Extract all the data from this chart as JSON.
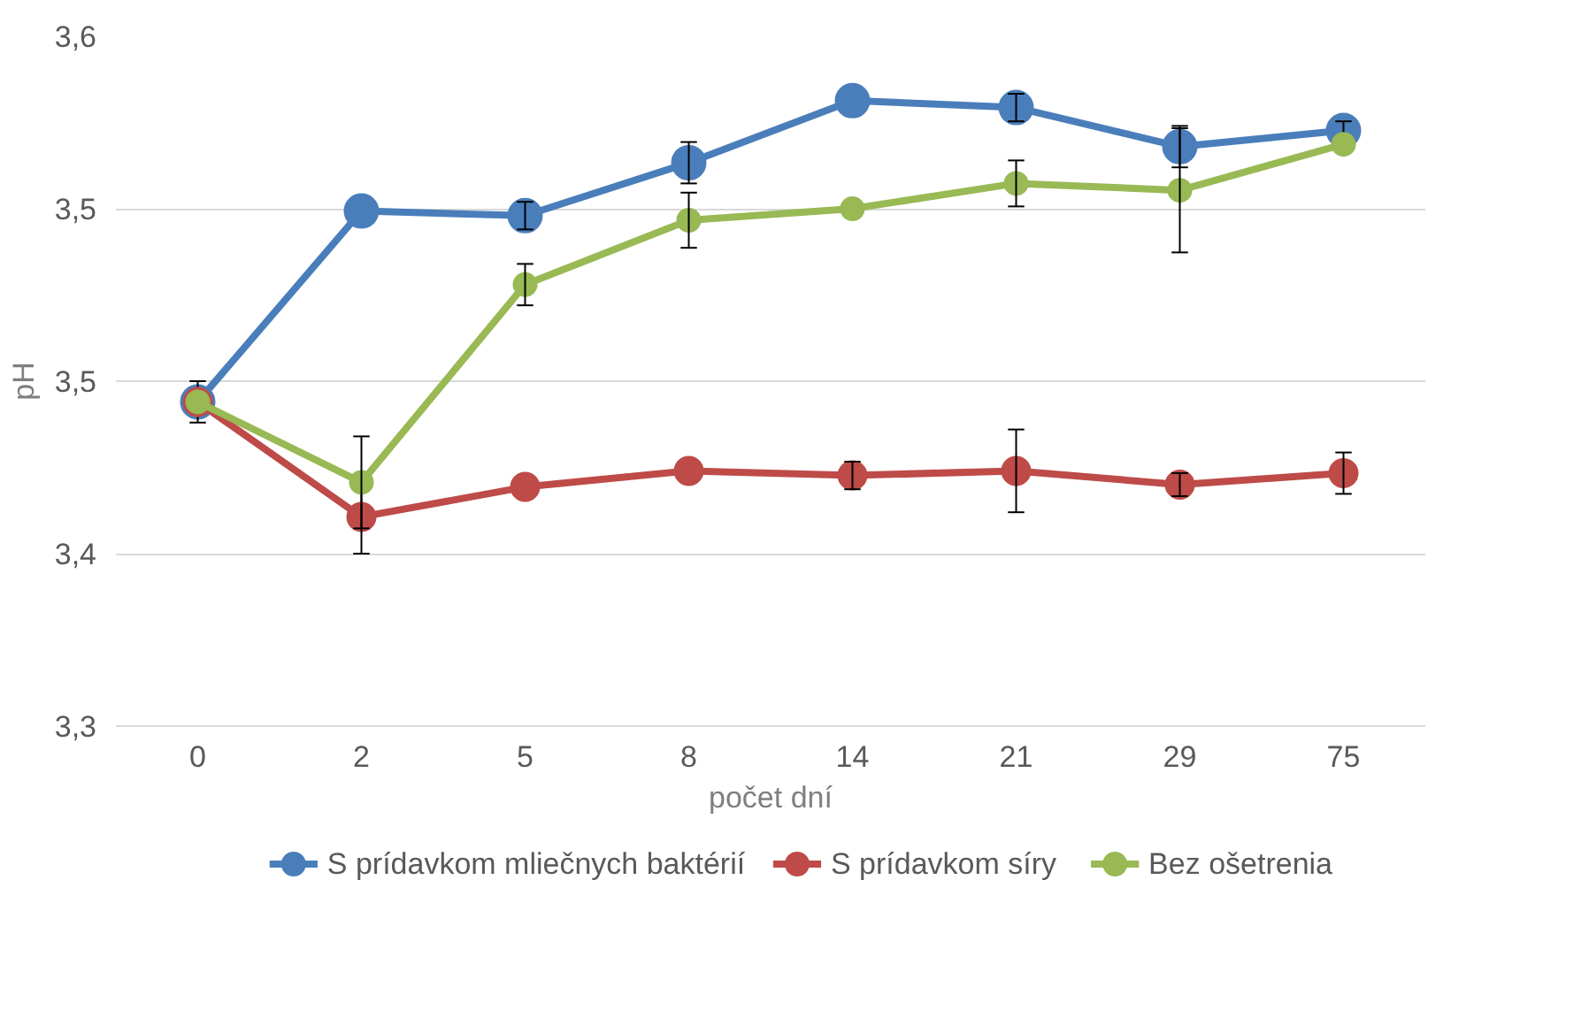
{
  "chart_data": {
    "type": "line",
    "xlabel": "počet dní",
    "ylabel": "pH",
    "categories": [
      "0",
      "2",
      "5",
      "8",
      "14",
      "21",
      "29",
      "75"
    ],
    "ylim": [
      3.3,
      3.6
    ],
    "yticks": [
      {
        "value": 3.3,
        "label": "3,3"
      },
      {
        "value": 3.375,
        "label": "3,4"
      },
      {
        "value": 3.45,
        "label": "3,5"
      },
      {
        "value": 3.525,
        "label": "3,5"
      },
      {
        "value": 3.6,
        "label": "3,6"
      }
    ],
    "grid": "y",
    "legend": "bottom",
    "marker": "circle",
    "line_style": "solid",
    "series": [
      {
        "name": "S prídavkom mliečnych baktérií",
        "color": "#4a7ebb",
        "values": [
          3.441,
          3.524,
          3.522,
          3.545,
          3.572,
          3.569,
          3.552,
          3.559
        ],
        "errors": [
          0.009,
          null,
          0.006,
          0.009,
          null,
          0.006,
          0.009,
          0.004
        ]
      },
      {
        "name": "S prídavkom síry",
        "color": "#be4b48",
        "values": [
          3.441,
          3.391,
          3.404,
          3.411,
          3.409,
          3.411,
          3.405,
          3.41
        ],
        "errors": [
          null,
          0.016,
          null,
          null,
          0.006,
          0.018,
          0.005,
          0.009
        ]
      },
      {
        "name": "Bez ošetrenia",
        "color": "#98b954",
        "values": [
          3.441,
          3.406,
          3.492,
          3.52,
          3.525,
          3.536,
          3.533,
          3.553
        ],
        "errors": [
          null,
          0.02,
          0.009,
          0.012,
          null,
          0.01,
          0.027,
          null
        ]
      }
    ]
  }
}
